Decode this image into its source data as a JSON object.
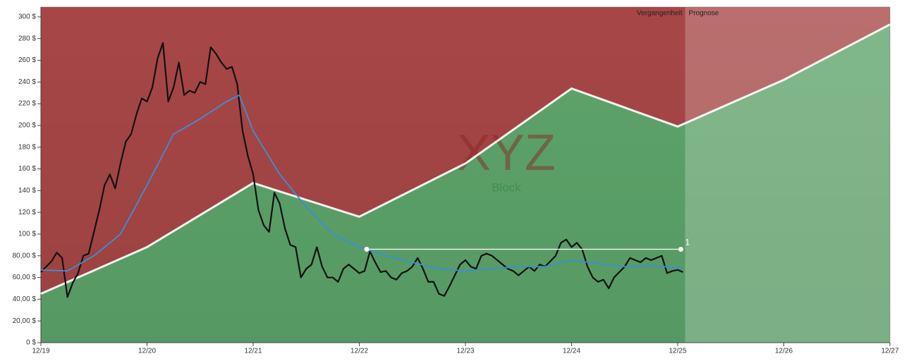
{
  "chart_data": {
    "type": "line",
    "xlim": [
      2020,
      2028
    ],
    "ylim": [
      0,
      309
    ],
    "xticks": [
      {
        "value": 2020,
        "label": "12/19"
      },
      {
        "value": 2021,
        "label": "12/20"
      },
      {
        "value": 2022,
        "label": "12/21"
      },
      {
        "value": 2023,
        "label": "12/22"
      },
      {
        "value": 2024,
        "label": "12/23"
      },
      {
        "value": 2025,
        "label": "12/24"
      },
      {
        "value": 2026,
        "label": "12/25"
      },
      {
        "value": 2027,
        "label": "12/26"
      },
      {
        "value": 2028,
        "label": "12/27"
      }
    ],
    "yticks": [
      {
        "value": 0,
        "label": "0 $"
      },
      {
        "value": 20,
        "label": "20,00 $"
      },
      {
        "value": 40,
        "label": "40,00 $"
      },
      {
        "value": 60,
        "label": "60,00 $"
      },
      {
        "value": 80,
        "label": "80,00 $"
      },
      {
        "value": 100,
        "label": "100 $"
      },
      {
        "value": 120,
        "label": "120 $"
      },
      {
        "value": 140,
        "label": "140 $"
      },
      {
        "value": 160,
        "label": "160 $"
      },
      {
        "value": 180,
        "label": "180 $"
      },
      {
        "value": 200,
        "label": "200 $"
      },
      {
        "value": 220,
        "label": "220 $"
      },
      {
        "value": 240,
        "label": "240 $"
      },
      {
        "value": 260,
        "label": "260 $"
      },
      {
        "value": 280,
        "label": "280 $"
      },
      {
        "value": 300,
        "label": "300 $"
      }
    ],
    "watermark": "XYZ",
    "subtitle": "Block",
    "past_label": "Vergangenheit",
    "forecast_label": "Prognose",
    "forecast_start": 2026.07,
    "above_color": "#b04a4a",
    "below_color": "#62ad70",
    "fair_value": {
      "color": "#ffffff",
      "x": [
        2020,
        2021,
        2022,
        2023,
        2024,
        2025,
        2026,
        2027,
        2028
      ],
      "values": [
        45,
        88,
        147,
        116,
        165,
        234,
        199,
        242,
        293
      ]
    },
    "series": [
      {
        "color": "#111111",
        "x": [
          2020,
          2020.05,
          2020.1,
          2020.15,
          2020.2,
          2020.25,
          2020.3,
          2020.35,
          2020.4,
          2020.45,
          2020.5,
          2020.55,
          2020.6,
          2020.65,
          2020.7,
          2020.75,
          2020.8,
          2020.85,
          2020.9,
          2020.95,
          2021,
          2021.05,
          2021.1,
          2021.15,
          2021.2,
          2021.25,
          2021.3,
          2021.35,
          2021.4,
          2021.45,
          2021.5,
          2021.55,
          2021.6,
          2021.65,
          2021.7,
          2021.75,
          2021.8,
          2021.85,
          2021.9,
          2021.95,
          2022,
          2022.05,
          2022.1,
          2022.15,
          2022.2,
          2022.25,
          2022.3,
          2022.35,
          2022.4,
          2022.45,
          2022.5,
          2022.55,
          2022.6,
          2022.65,
          2022.7,
          2022.75,
          2022.8,
          2022.85,
          2022.9,
          2022.95,
          2023,
          2023.05,
          2023.1,
          2023.15,
          2023.2,
          2023.25,
          2023.3,
          2023.35,
          2023.4,
          2023.45,
          2023.5,
          2023.55,
          2023.6,
          2023.65,
          2023.7,
          2023.75,
          2023.8,
          2023.85,
          2023.9,
          2023.95,
          2024,
          2024.05,
          2024.1,
          2024.15,
          2024.2,
          2024.25,
          2024.3,
          2024.35,
          2024.4,
          2024.45,
          2024.5,
          2024.55,
          2024.6,
          2024.65,
          2024.7,
          2024.75,
          2024.8,
          2024.85,
          2024.9,
          2024.95,
          2025,
          2025.05,
          2025.1,
          2025.15,
          2025.2,
          2025.25,
          2025.3,
          2025.35,
          2025.4,
          2025.45,
          2025.5,
          2025.55,
          2025.6,
          2025.65,
          2025.7,
          2025.75,
          2025.8,
          2025.85,
          2025.9,
          2025.95,
          2026,
          2026.05
        ],
        "values": [
          65,
          70,
          75,
          83,
          78,
          42,
          55,
          64,
          80,
          82,
          102,
          122,
          145,
          155,
          142,
          165,
          185,
          192,
          210,
          225,
          222,
          235,
          262,
          276,
          222,
          235,
          258,
          228,
          232,
          230,
          240,
          238,
          272,
          266,
          258,
          252,
          254,
          238,
          195,
          172,
          155,
          122,
          108,
          102,
          138,
          128,
          105,
          90,
          88,
          60,
          68,
          72,
          88,
          70,
          60,
          60,
          56,
          68,
          72,
          68,
          64,
          66,
          84,
          74,
          65,
          66,
          60,
          58,
          64,
          66,
          70,
          78,
          68,
          56,
          56,
          45,
          43,
          52,
          62,
          72,
          76,
          70,
          68,
          80,
          82,
          80,
          76,
          72,
          68,
          66,
          62,
          66,
          70,
          66,
          72,
          70,
          75,
          80,
          92,
          95,
          88,
          92,
          86,
          70,
          60,
          56,
          58,
          50,
          60,
          65,
          70,
          78,
          76,
          74,
          78,
          76,
          78,
          80,
          64,
          66,
          67,
          65
        ]
      },
      {
        "color": "#3a8fd8",
        "x": [
          2020,
          2020.25,
          2020.5,
          2020.75,
          2021,
          2021.25,
          2021.5,
          2021.75,
          2021.87,
          2022,
          2022.25,
          2022.5,
          2022.75,
          2023,
          2023.25,
          2023.5,
          2023.75,
          2024,
          2024.25,
          2024.5,
          2024.75,
          2025,
          2025.25,
          2025.5,
          2025.75,
          2026,
          2026.06
        ],
        "values": [
          67,
          66,
          80,
          100,
          145,
          192,
          206,
          222,
          228,
          195,
          155,
          125,
          100,
          88,
          80,
          74,
          68,
          66,
          68,
          70,
          70,
          76,
          73,
          70,
          71,
          69,
          68
        ]
      },
      {
        "color": "#ffffff",
        "x": [
          2023.07,
          2026.03
        ],
        "values": [
          86,
          86
        ]
      }
    ],
    "annotation": "1"
  }
}
